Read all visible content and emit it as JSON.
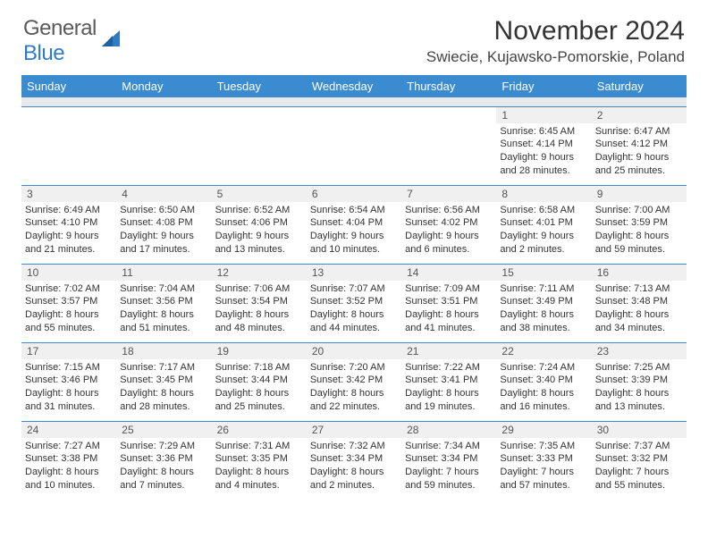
{
  "brand": {
    "part1": "General",
    "part2": "Blue"
  },
  "title": "November 2024",
  "location": "Swiecie, Kujawsko-Pomorskie, Poland",
  "colors": {
    "header_bg": "#3b8bd0",
    "header_fg": "#ffffff",
    "daynum_bg": "#f0f0f0",
    "spacer_bg": "#e9e9e9",
    "border": "#3b8bd0",
    "text": "#333333",
    "brand_blue": "#2f7cc4"
  },
  "day_headers": [
    "Sunday",
    "Monday",
    "Tuesday",
    "Wednesday",
    "Thursday",
    "Friday",
    "Saturday"
  ],
  "weeks": [
    [
      null,
      null,
      null,
      null,
      null,
      {
        "n": "1",
        "sr": "Sunrise: 6:45 AM",
        "ss": "Sunset: 4:14 PM",
        "d1": "Daylight: 9 hours",
        "d2": "and 28 minutes."
      },
      {
        "n": "2",
        "sr": "Sunrise: 6:47 AM",
        "ss": "Sunset: 4:12 PM",
        "d1": "Daylight: 9 hours",
        "d2": "and 25 minutes."
      }
    ],
    [
      {
        "n": "3",
        "sr": "Sunrise: 6:49 AM",
        "ss": "Sunset: 4:10 PM",
        "d1": "Daylight: 9 hours",
        "d2": "and 21 minutes."
      },
      {
        "n": "4",
        "sr": "Sunrise: 6:50 AM",
        "ss": "Sunset: 4:08 PM",
        "d1": "Daylight: 9 hours",
        "d2": "and 17 minutes."
      },
      {
        "n": "5",
        "sr": "Sunrise: 6:52 AM",
        "ss": "Sunset: 4:06 PM",
        "d1": "Daylight: 9 hours",
        "d2": "and 13 minutes."
      },
      {
        "n": "6",
        "sr": "Sunrise: 6:54 AM",
        "ss": "Sunset: 4:04 PM",
        "d1": "Daylight: 9 hours",
        "d2": "and 10 minutes."
      },
      {
        "n": "7",
        "sr": "Sunrise: 6:56 AM",
        "ss": "Sunset: 4:02 PM",
        "d1": "Daylight: 9 hours",
        "d2": "and 6 minutes."
      },
      {
        "n": "8",
        "sr": "Sunrise: 6:58 AM",
        "ss": "Sunset: 4:01 PM",
        "d1": "Daylight: 9 hours",
        "d2": "and 2 minutes."
      },
      {
        "n": "9",
        "sr": "Sunrise: 7:00 AM",
        "ss": "Sunset: 3:59 PM",
        "d1": "Daylight: 8 hours",
        "d2": "and 59 minutes."
      }
    ],
    [
      {
        "n": "10",
        "sr": "Sunrise: 7:02 AM",
        "ss": "Sunset: 3:57 PM",
        "d1": "Daylight: 8 hours",
        "d2": "and 55 minutes."
      },
      {
        "n": "11",
        "sr": "Sunrise: 7:04 AM",
        "ss": "Sunset: 3:56 PM",
        "d1": "Daylight: 8 hours",
        "d2": "and 51 minutes."
      },
      {
        "n": "12",
        "sr": "Sunrise: 7:06 AM",
        "ss": "Sunset: 3:54 PM",
        "d1": "Daylight: 8 hours",
        "d2": "and 48 minutes."
      },
      {
        "n": "13",
        "sr": "Sunrise: 7:07 AM",
        "ss": "Sunset: 3:52 PM",
        "d1": "Daylight: 8 hours",
        "d2": "and 44 minutes."
      },
      {
        "n": "14",
        "sr": "Sunrise: 7:09 AM",
        "ss": "Sunset: 3:51 PM",
        "d1": "Daylight: 8 hours",
        "d2": "and 41 minutes."
      },
      {
        "n": "15",
        "sr": "Sunrise: 7:11 AM",
        "ss": "Sunset: 3:49 PM",
        "d1": "Daylight: 8 hours",
        "d2": "and 38 minutes."
      },
      {
        "n": "16",
        "sr": "Sunrise: 7:13 AM",
        "ss": "Sunset: 3:48 PM",
        "d1": "Daylight: 8 hours",
        "d2": "and 34 minutes."
      }
    ],
    [
      {
        "n": "17",
        "sr": "Sunrise: 7:15 AM",
        "ss": "Sunset: 3:46 PM",
        "d1": "Daylight: 8 hours",
        "d2": "and 31 minutes."
      },
      {
        "n": "18",
        "sr": "Sunrise: 7:17 AM",
        "ss": "Sunset: 3:45 PM",
        "d1": "Daylight: 8 hours",
        "d2": "and 28 minutes."
      },
      {
        "n": "19",
        "sr": "Sunrise: 7:18 AM",
        "ss": "Sunset: 3:44 PM",
        "d1": "Daylight: 8 hours",
        "d2": "and 25 minutes."
      },
      {
        "n": "20",
        "sr": "Sunrise: 7:20 AM",
        "ss": "Sunset: 3:42 PM",
        "d1": "Daylight: 8 hours",
        "d2": "and 22 minutes."
      },
      {
        "n": "21",
        "sr": "Sunrise: 7:22 AM",
        "ss": "Sunset: 3:41 PM",
        "d1": "Daylight: 8 hours",
        "d2": "and 19 minutes."
      },
      {
        "n": "22",
        "sr": "Sunrise: 7:24 AM",
        "ss": "Sunset: 3:40 PM",
        "d1": "Daylight: 8 hours",
        "d2": "and 16 minutes."
      },
      {
        "n": "23",
        "sr": "Sunrise: 7:25 AM",
        "ss": "Sunset: 3:39 PM",
        "d1": "Daylight: 8 hours",
        "d2": "and 13 minutes."
      }
    ],
    [
      {
        "n": "24",
        "sr": "Sunrise: 7:27 AM",
        "ss": "Sunset: 3:38 PM",
        "d1": "Daylight: 8 hours",
        "d2": "and 10 minutes."
      },
      {
        "n": "25",
        "sr": "Sunrise: 7:29 AM",
        "ss": "Sunset: 3:36 PM",
        "d1": "Daylight: 8 hours",
        "d2": "and 7 minutes."
      },
      {
        "n": "26",
        "sr": "Sunrise: 7:31 AM",
        "ss": "Sunset: 3:35 PM",
        "d1": "Daylight: 8 hours",
        "d2": "and 4 minutes."
      },
      {
        "n": "27",
        "sr": "Sunrise: 7:32 AM",
        "ss": "Sunset: 3:34 PM",
        "d1": "Daylight: 8 hours",
        "d2": "and 2 minutes."
      },
      {
        "n": "28",
        "sr": "Sunrise: 7:34 AM",
        "ss": "Sunset: 3:34 PM",
        "d1": "Daylight: 7 hours",
        "d2": "and 59 minutes."
      },
      {
        "n": "29",
        "sr": "Sunrise: 7:35 AM",
        "ss": "Sunset: 3:33 PM",
        "d1": "Daylight: 7 hours",
        "d2": "and 57 minutes."
      },
      {
        "n": "30",
        "sr": "Sunrise: 7:37 AM",
        "ss": "Sunset: 3:32 PM",
        "d1": "Daylight: 7 hours",
        "d2": "and 55 minutes."
      }
    ]
  ]
}
